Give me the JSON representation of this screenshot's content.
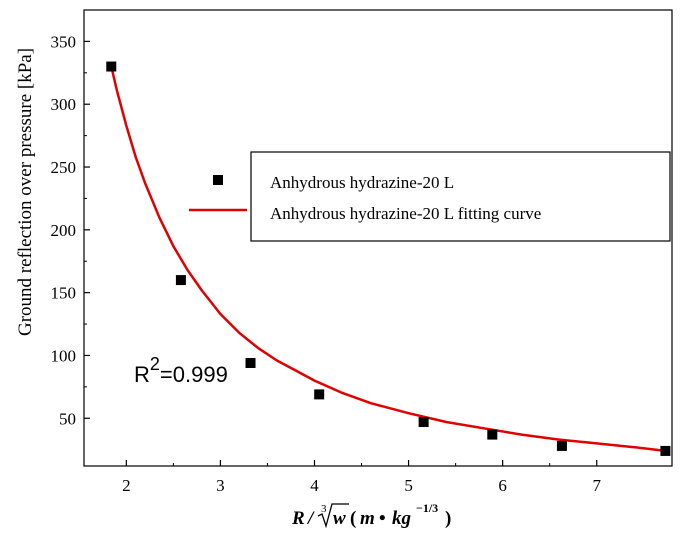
{
  "chart_data": {
    "type": "scatter",
    "title": "",
    "xlabel": {
      "R": "R",
      "slash": "/",
      "root_index": "3",
      "w": "w",
      "open": "(",
      "m": "m",
      "bullet": "•",
      "kg": "kg",
      "exponent": "−1/3",
      "close": ")"
    },
    "ylabel": "Ground reflection over pressure [kPa]",
    "xlim": [
      1.55,
      7.8
    ],
    "ylim": [
      12,
      375
    ],
    "x_ticks": [
      "2",
      "3",
      "4",
      "5",
      "6",
      "7"
    ],
    "x_tick_values": [
      2,
      3,
      4,
      5,
      6,
      7
    ],
    "y_ticks": [
      "50",
      "100",
      "150",
      "200",
      "250",
      "300",
      "350"
    ],
    "y_tick_values": [
      50,
      100,
      150,
      200,
      250,
      300,
      350
    ],
    "grid": false,
    "legend_position": "top-right",
    "series": [
      {
        "name": "Anhydrous hydrazine-20 L",
        "kind": "scatter",
        "marker": "square",
        "color": "#000000",
        "x": [
          1.84,
          2.58,
          3.32,
          4.05,
          5.16,
          5.89,
          6.63,
          7.73
        ],
        "y": [
          330,
          160,
          94,
          69,
          47,
          37,
          28,
          24
        ]
      },
      {
        "name": "Anhydrous hydrazine-20 L fitting curve",
        "kind": "line",
        "color": "#e00000",
        "x": [
          1.84,
          1.9,
          2.0,
          2.1,
          2.2,
          2.35,
          2.5,
          2.65,
          2.8,
          3.0,
          3.2,
          3.4,
          3.6,
          3.8,
          4.0,
          4.3,
          4.6,
          5.0,
          5.4,
          5.8,
          6.2,
          6.6,
          7.0,
          7.4,
          7.73
        ],
        "y": [
          330,
          311,
          283,
          258,
          237,
          210,
          187,
          168,
          152,
          133,
          118,
          106,
          96,
          88,
          80,
          70,
          62,
          54,
          47,
          42,
          37,
          33,
          30,
          27,
          24
        ]
      }
    ],
    "annotation": {
      "base": "R",
      "superscript": "2",
      "rest": "=0.999"
    }
  }
}
